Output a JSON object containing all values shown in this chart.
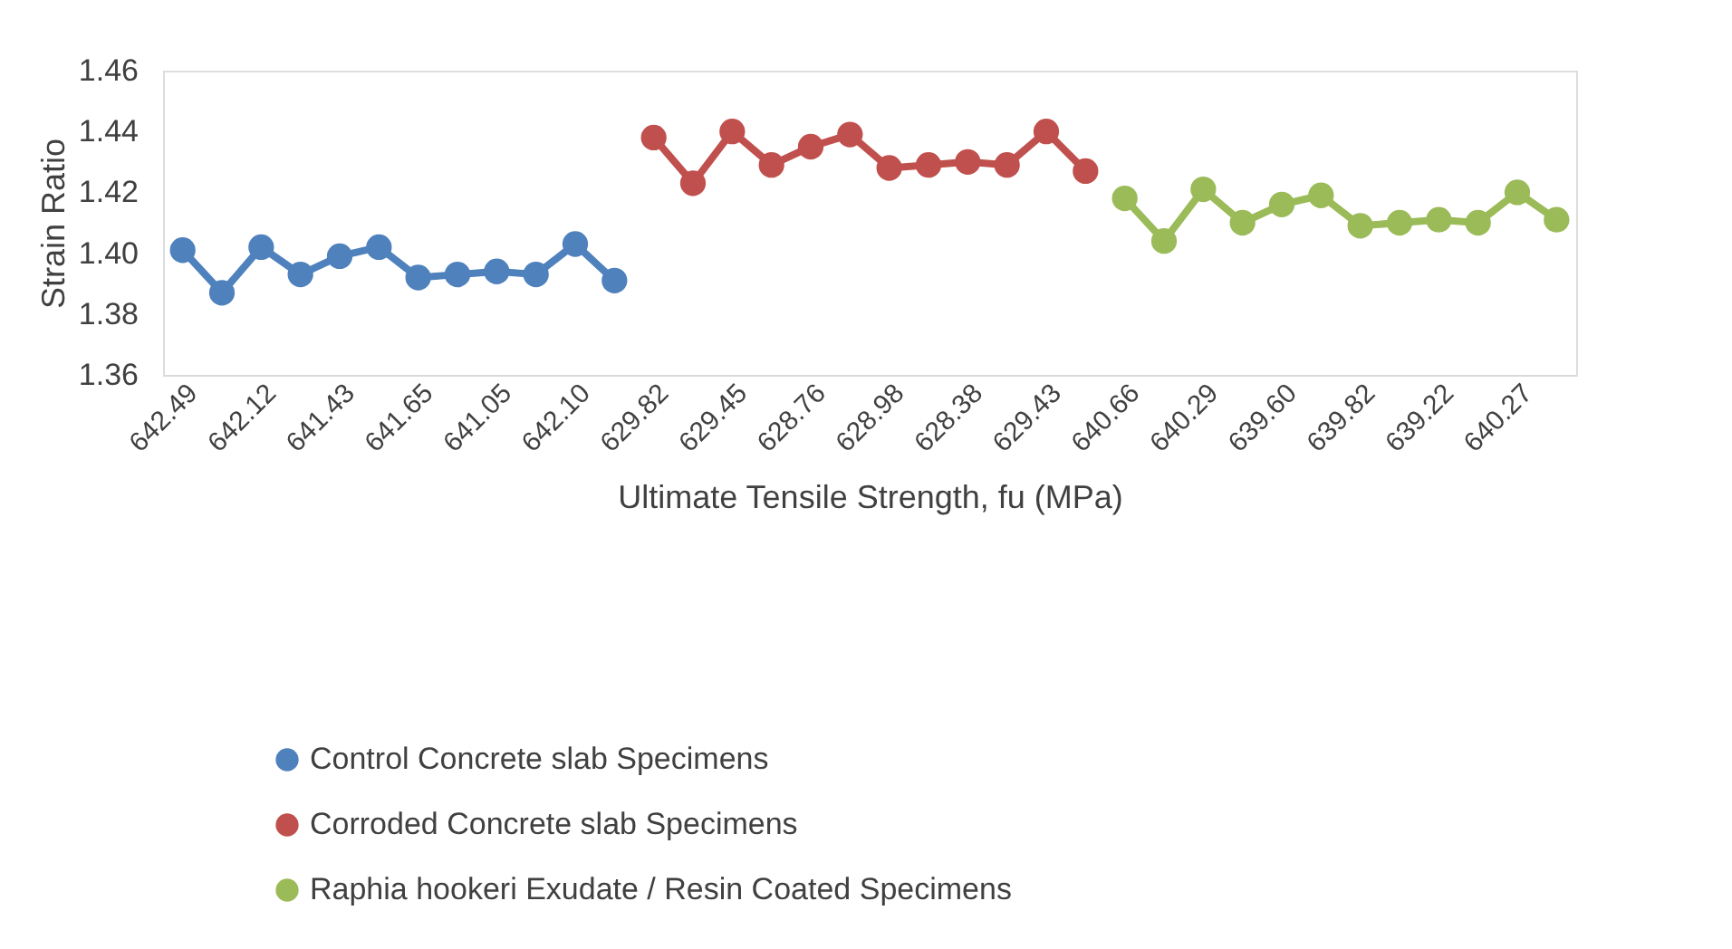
{
  "chart_data": {
    "type": "line",
    "xlabel": "Ultimate Tensile Strength, fu (MPa)",
    "ylabel": "Strain Ratio",
    "categories": [
      "642.49",
      null,
      "642.12",
      null,
      "641.43",
      null,
      "641.65",
      null,
      "641.05",
      null,
      "642.10",
      null,
      "629.82",
      null,
      "629.45",
      null,
      "628.76",
      null,
      "628.98",
      null,
      "628.38",
      null,
      "629.43",
      null,
      "640.66",
      null,
      "640.29",
      null,
      "639.60",
      null,
      "639.82",
      null,
      "639.22",
      null,
      "640.27",
      null
    ],
    "series": [
      {
        "name": "Control  Concrete slab Specimens",
        "color": "#4f81bd",
        "values": [
          1.401,
          1.387,
          1.402,
          1.393,
          1.399,
          1.402,
          1.392,
          1.393,
          1.394,
          1.393,
          1.403,
          1.391,
          null,
          null,
          null,
          null,
          null,
          null,
          null,
          null,
          null,
          null,
          null,
          null,
          null,
          null,
          null,
          null,
          null,
          null,
          null,
          null,
          null,
          null,
          null,
          null
        ]
      },
      {
        "name": "Corroded Concrete slab Specimens",
        "color": "#c0504d",
        "values": [
          null,
          null,
          null,
          null,
          null,
          null,
          null,
          null,
          null,
          null,
          null,
          null,
          1.438,
          1.423,
          1.44,
          1.429,
          1.435,
          1.439,
          1.428,
          1.429,
          1.43,
          1.429,
          1.44,
          1.427,
          null,
          null,
          null,
          null,
          null,
          null,
          null,
          null,
          null,
          null,
          null,
          null
        ]
      },
      {
        "name": "Raphia hookeri Exudate / Resin Coated Specimens",
        "color": "#9bbb59",
        "values": [
          null,
          null,
          null,
          null,
          null,
          null,
          null,
          null,
          null,
          null,
          null,
          null,
          null,
          null,
          null,
          null,
          null,
          null,
          null,
          null,
          null,
          null,
          null,
          null,
          1.418,
          1.404,
          1.421,
          1.41,
          1.416,
          1.419,
          1.409,
          1.41,
          1.411,
          1.41,
          1.42,
          1.411
        ]
      }
    ],
    "ylim": [
      1.36,
      1.46
    ],
    "yticks": [
      {
        "value": 1.36,
        "label": "1.36"
      },
      {
        "value": 1.38,
        "label": "1.38"
      },
      {
        "value": 1.4,
        "label": "1.40"
      },
      {
        "value": 1.42,
        "label": "1.42"
      },
      {
        "value": 1.44,
        "label": "1.44"
      },
      {
        "value": 1.46,
        "label": "1.46"
      }
    ],
    "grid": false,
    "legend": "bottom",
    "marker": "circle",
    "line_style": "solid"
  }
}
